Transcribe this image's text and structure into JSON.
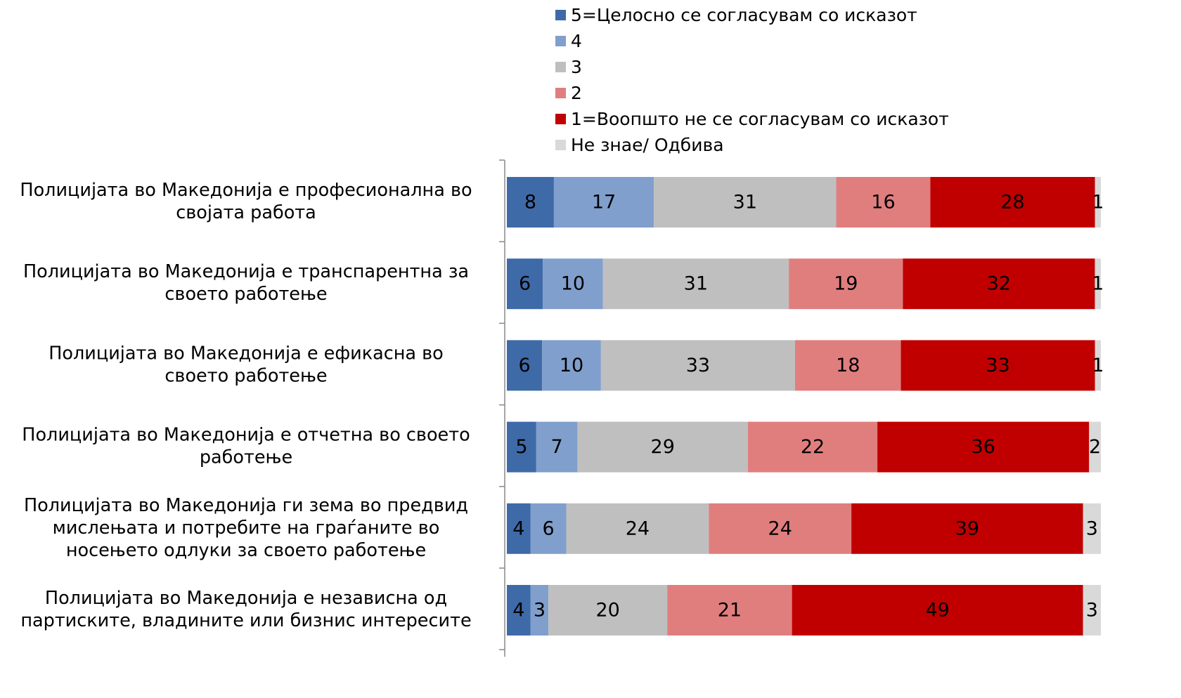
{
  "chart_data": {
    "type": "bar",
    "orientation": "horizontal",
    "stacked": true,
    "categories": [
      [
        "Полицијата во Македонија е професионална во",
        "својата работа"
      ],
      [
        "Полицијата во Македонија е транспарентна за",
        "своето работење"
      ],
      [
        "Полицијата во Македонија е ефикасна во",
        "своето работење"
      ],
      [
        "Полицијата во Македонија е отчетна во своето",
        "работење"
      ],
      [
        "Полицијата во Македонија ги зема во предвид",
        "мислењата и потребите на граѓаните во",
        "носењето одлуки за своето работење"
      ],
      [
        "Полицијата во Македонија е независна од",
        "партиските, владините или бизнис интересите"
      ]
    ],
    "series": [
      {
        "name": "5=Целосно се согласувам со исказот",
        "color": "#3f6aa8",
        "values": [
          8,
          6,
          6,
          5,
          4,
          4
        ]
      },
      {
        "name": "4",
        "color": "#809fcc",
        "values": [
          17,
          10,
          10,
          7,
          6,
          3
        ]
      },
      {
        "name": "3",
        "color": "#bfbfbf",
        "values": [
          31,
          31,
          33,
          29,
          24,
          20
        ]
      },
      {
        "name": "2",
        "color": "#e07e7e",
        "values": [
          16,
          19,
          18,
          22,
          24,
          21
        ]
      },
      {
        "name": "1=Воопшто не се согласувам со исказот",
        "color": "#c00000",
        "values": [
          28,
          32,
          33,
          36,
          39,
          49
        ]
      },
      {
        "name": "Не знае/ Одбива",
        "color": "#d9d9d9",
        "values": [
          1,
          1,
          1,
          2,
          3,
          3
        ]
      }
    ]
  }
}
